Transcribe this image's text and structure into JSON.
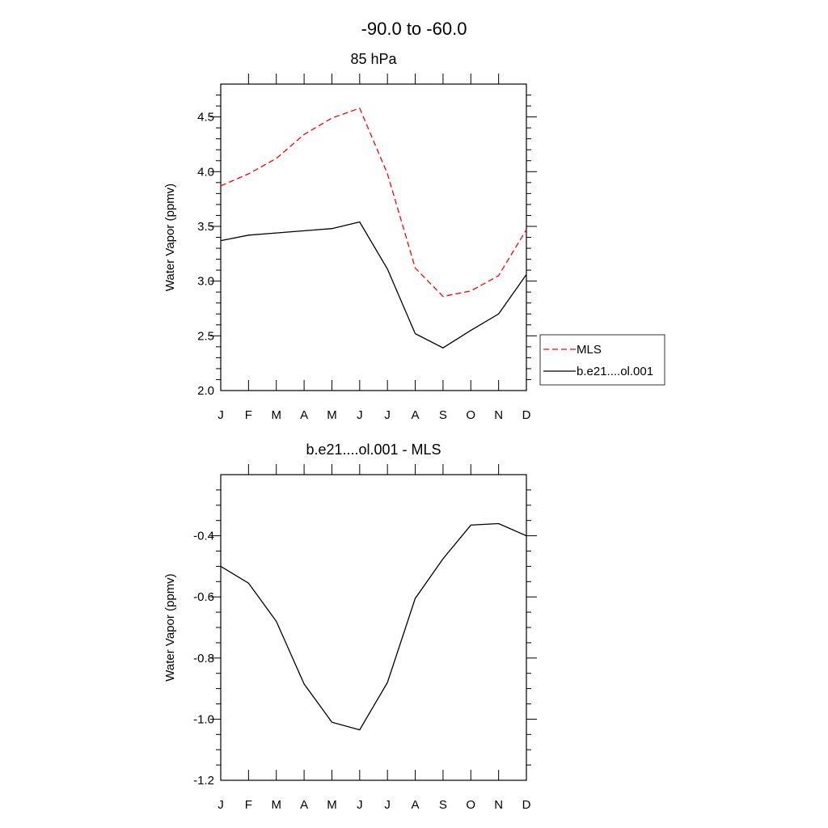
{
  "figure_title": "-90.0 to -60.0",
  "chart_data": [
    {
      "type": "line",
      "title": "85 hPa",
      "xlabel": "",
      "ylabel": "Water Vapor (ppmv)",
      "categories": [
        "J",
        "F",
        "M",
        "A",
        "M",
        "J",
        "J",
        "A",
        "S",
        "O",
        "N",
        "D"
      ],
      "ylim": [
        2.0,
        4.8
      ],
      "yticks": [
        "2.0",
        "2.5",
        "3.0",
        "3.5",
        "4.0",
        "4.5"
      ],
      "legend_position": "right",
      "series": [
        {
          "name": "MLS",
          "color": "#ff0000",
          "line_style": "dashed",
          "values": [
            3.87,
            3.98,
            4.12,
            4.34,
            4.49,
            4.58,
            3.98,
            3.12,
            2.86,
            2.91,
            3.05,
            3.47
          ]
        },
        {
          "name": "b.e21....ol.001",
          "color": "#000000",
          "line_style": "solid",
          "values": [
            3.37,
            3.42,
            3.44,
            3.46,
            3.48,
            3.54,
            3.11,
            2.52,
            2.39,
            2.55,
            2.7,
            3.06
          ]
        }
      ]
    },
    {
      "type": "line",
      "title": "b.e21....ol.001 - MLS",
      "xlabel": "",
      "ylabel": "Water Vapor (ppmv)",
      "categories": [
        "J",
        "F",
        "M",
        "A",
        "M",
        "J",
        "J",
        "A",
        "S",
        "O",
        "N",
        "D"
      ],
      "ylim": [
        -1.2,
        -0.2
      ],
      "yticks": [
        "-1.2",
        "-1.0",
        "-0.8",
        "-0.6",
        "-0.4"
      ],
      "series": [
        {
          "color": "#000000",
          "line_style": "solid",
          "values": [
            -0.5,
            -0.555,
            -0.68,
            -0.885,
            -1.01,
            -1.035,
            -0.88,
            -0.605,
            -0.475,
            -0.365,
            -0.36,
            -0.4
          ]
        }
      ]
    }
  ]
}
